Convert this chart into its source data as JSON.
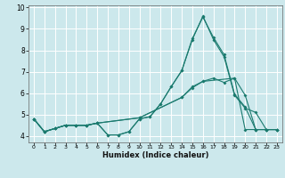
{
  "title": "",
  "xlabel": "Humidex (Indice chaleur)",
  "bg_color": "#cce8ec",
  "grid_color": "#ffffff",
  "line_color": "#1a7a6e",
  "xlim": [
    -0.5,
    23.5
  ],
  "ylim": [
    3.7,
    10.1
  ],
  "xticks": [
    0,
    1,
    2,
    3,
    4,
    5,
    6,
    7,
    8,
    9,
    10,
    11,
    12,
    13,
    14,
    15,
    16,
    17,
    18,
    19,
    20,
    21,
    22,
    23
  ],
  "yticks": [
    4,
    5,
    6,
    7,
    8,
    9,
    10
  ],
  "line1_x": [
    0,
    1,
    2,
    3,
    4,
    5,
    6,
    7,
    8,
    9,
    10,
    11,
    12,
    13,
    14,
    15,
    16,
    17,
    18,
    19,
    20,
    21,
    22,
    23
  ],
  "line1_y": [
    4.8,
    4.2,
    4.35,
    4.5,
    4.5,
    4.5,
    4.6,
    4.05,
    4.05,
    4.2,
    4.8,
    4.9,
    5.5,
    6.3,
    7.05,
    8.5,
    9.6,
    8.5,
    7.7,
    5.9,
    5.3,
    5.1,
    4.3,
    4.3
  ],
  "line2_x": [
    0,
    1,
    2,
    3,
    4,
    5,
    6,
    7,
    8,
    9,
    10,
    11,
    12,
    13,
    14,
    15,
    16,
    17,
    18,
    19,
    20,
    21,
    22,
    23
  ],
  "line2_y": [
    4.8,
    4.2,
    4.35,
    4.5,
    4.5,
    4.5,
    4.6,
    4.05,
    4.05,
    4.2,
    4.8,
    4.9,
    5.5,
    6.3,
    7.05,
    8.55,
    9.55,
    8.6,
    7.8,
    5.95,
    5.35,
    4.3,
    4.3,
    4.3
  ],
  "line3_x": [
    0,
    1,
    2,
    3,
    4,
    5,
    6,
    10,
    14,
    15,
    16,
    17,
    18,
    19,
    20,
    21,
    22,
    23
  ],
  "line3_y": [
    4.8,
    4.2,
    4.35,
    4.5,
    4.5,
    4.5,
    4.6,
    4.85,
    5.8,
    6.3,
    6.55,
    6.7,
    6.5,
    6.7,
    5.9,
    4.3,
    4.3,
    4.3
  ],
  "line4_x": [
    0,
    1,
    2,
    3,
    4,
    5,
    6,
    10,
    14,
    15,
    16,
    19,
    20,
    21,
    22,
    23
  ],
  "line4_y": [
    4.8,
    4.2,
    4.35,
    4.5,
    4.5,
    4.5,
    4.6,
    4.85,
    5.8,
    6.25,
    6.55,
    6.7,
    4.3,
    4.3,
    4.3,
    4.3
  ]
}
